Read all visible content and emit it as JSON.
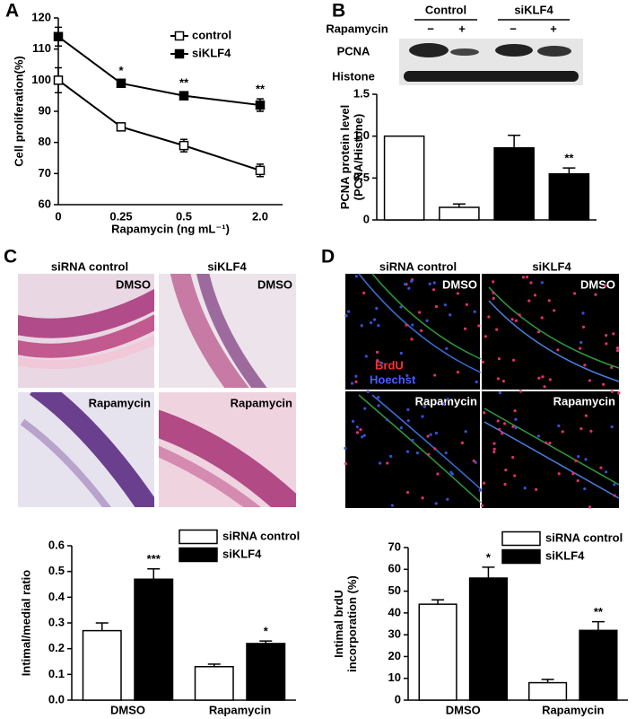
{
  "panels": {
    "a": "A",
    "b": "B",
    "c": "C",
    "d": "D"
  },
  "blot": {
    "groups": [
      "Control",
      "siKLF4"
    ],
    "row_label": "Rapamycin",
    "signs": [
      "−",
      "+",
      "−",
      "+"
    ],
    "bands": [
      "PCNA",
      "Histone"
    ]
  },
  "micro_c": {
    "cols": [
      "siRNA control",
      "siKLF4"
    ],
    "rows": [
      "DMSO",
      "Rapamycin"
    ]
  },
  "micro_d": {
    "cols": [
      "siRNA control",
      "siKLF4"
    ],
    "rows": [
      "DMSO",
      "Rapamycin"
    ],
    "stains": [
      "BrdU",
      "Hoechst"
    ]
  },
  "chart_data": [
    {
      "type": "line",
      "y_label": [
        "Cell proliferation(%)"
      ],
      "x_label": "Rapamycin (ng mL⁻¹)",
      "categories": [
        "0",
        "0.25",
        "0.5",
        "2.0"
      ],
      "ylim": [
        60,
        120
      ],
      "yticks": [
        60,
        70,
        80,
        90,
        100,
        110,
        120
      ],
      "legend": "upper right",
      "series": [
        {
          "name": "control",
          "color": "#000000",
          "fill": "#ffffff",
          "values": [
            100,
            85,
            79,
            71
          ],
          "errors": [
            4,
            1,
            2,
            2
          ],
          "annotations": [
            null,
            null,
            null,
            null
          ]
        },
        {
          "name": "siKLF4",
          "color": "#000000",
          "fill": "#000000",
          "values": [
            114,
            99,
            95,
            92
          ],
          "errors": [
            3,
            1,
            1,
            2
          ],
          "annotations": [
            null,
            "*",
            "**",
            "**"
          ]
        }
      ]
    },
    {
      "type": "bar",
      "y_label": [
        "PCNA protein level",
        "(PCNA/Histone)"
      ],
      "categories": [
        null,
        null,
        null,
        null
      ],
      "values": [
        1.0,
        0.15,
        0.86,
        0.55
      ],
      "errors": [
        0,
        0.04,
        0.15,
        0.07
      ],
      "colors": [
        "#ffffff",
        "#ffffff",
        "#000000",
        "#000000"
      ],
      "annotations": [
        null,
        null,
        null,
        "**"
      ],
      "ylim": [
        0,
        1.5
      ],
      "yticks": [
        0,
        0.5,
        {
          "value": 1,
          "label": "1.0"
        },
        1.5
      ]
    },
    {
      "type": "bar",
      "y_label": [
        "Intimal/medial ratio"
      ],
      "categories": [
        "DMSO",
        "Rapamycin"
      ],
      "ylim": [
        0,
        0.6
      ],
      "yticks": [
        {
          "value": 0,
          "label": "0.0"
        },
        0.1,
        0.2,
        0.3,
        0.4,
        0.5,
        0.6
      ],
      "legend": "upper right",
      "series": [
        {
          "name": "siRNA control",
          "color": "#ffffff",
          "values": [
            0.27,
            0.13
          ],
          "errors": [
            0.03,
            0.01
          ],
          "annotations": [
            null,
            null
          ]
        },
        {
          "name": "siKLF4",
          "color": "#000000",
          "values": [
            0.47,
            0.22
          ],
          "errors": [
            0.04,
            0.01
          ],
          "annotations": [
            "***",
            "*"
          ]
        }
      ]
    },
    {
      "type": "bar",
      "y_label": [
        "Intimal brdU",
        "incorporation (%)"
      ],
      "categories": [
        "DMSO",
        "Rapamycin"
      ],
      "ylim": [
        0,
        70
      ],
      "yticks": [
        0,
        10,
        20,
        30,
        40,
        50,
        60,
        70
      ],
      "legend": "upper right",
      "series": [
        {
          "name": "siRNA control",
          "color": "#ffffff",
          "values": [
            44,
            8
          ],
          "errors": [
            2,
            1.5
          ],
          "annotations": [
            null,
            null
          ]
        },
        {
          "name": "siKLF4",
          "color": "#000000",
          "values": [
            56,
            32
          ],
          "errors": [
            5,
            4
          ],
          "annotations": [
            "*",
            "**"
          ]
        }
      ]
    }
  ]
}
